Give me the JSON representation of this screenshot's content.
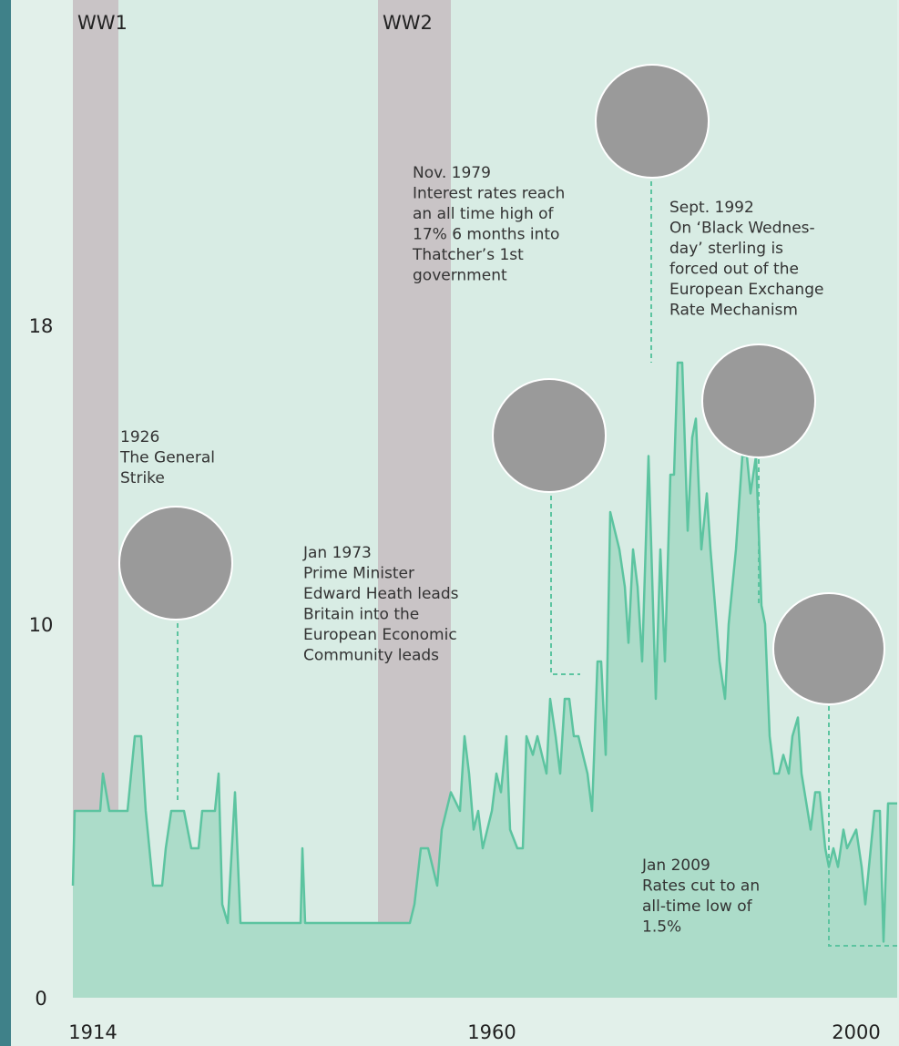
{
  "chart_data": {
    "type": "area",
    "x": [
      1914,
      1914.2,
      1917,
      1917.3,
      1918,
      1920,
      1920.8,
      1921.5,
      1922,
      1922.8,
      1923.8,
      1924.2,
      1924.8,
      1925.6,
      1926.2,
      1927,
      1927.8,
      1928.2,
      1929.6,
      1930,
      1930.4,
      1931,
      1931.8,
      1932.4,
      1939,
      1939.2,
      1939.5,
      1951,
      1951.5,
      1952.2,
      1953,
      1953.5,
      1954,
      1954.5,
      1955.5,
      1956.5,
      1957,
      1957.5,
      1958,
      1958.5,
      1959,
      1960,
      1960.5,
      1961,
      1961.6,
      1962,
      1962.8,
      1963.4,
      1963.8,
      1964.5,
      1965,
      1966,
      1966.4,
      1967,
      1967.5,
      1968,
      1968.5,
      1969,
      1969.5,
      1970.5,
      1971,
      1971.6,
      1972,
      1972.5,
      1973,
      1974,
      1974.6,
      1975,
      1975.5,
      1976,
      1976.5,
      1977.2,
      1978,
      1978.5,
      1979,
      1979.6,
      1980,
      1980.4,
      1980.9,
      1981.5,
      1982,
      1982.4,
      1983,
      1983.6,
      1984,
      1985,
      1985.6,
      1986,
      1986.8,
      1987.5,
      1988,
      1988.4,
      1988.7,
      1989,
      1989.6,
      1990,
      1990.5,
      1991,
      1991.5,
      1992,
      1992.6,
      1993,
      1993.6,
      1994,
      1995,
      1995.5,
      1996,
      1996.6,
      1997,
      1997.5,
      1998,
      1998.6,
      1999,
      2000,
      2000.6,
      2001,
      2002,
      2002.6,
      2003,
      2003.5,
      2004.5
    ],
    "values": [
      3,
      5,
      5,
      6,
      5,
      5,
      7,
      7,
      5,
      3,
      3,
      4,
      5,
      5,
      5,
      4,
      4,
      5,
      5,
      6,
      2.5,
      2,
      5.5,
      2,
      2,
      4,
      2,
      2,
      2.5,
      4,
      4,
      3.5,
      3,
      4.5,
      5.5,
      5,
      7,
      6,
      4.5,
      5,
      4,
      5,
      6,
      5.5,
      7,
      4.5,
      4,
      4,
      7,
      6.5,
      7,
      6,
      8,
      7,
      6,
      8,
      8,
      7,
      7,
      6,
      5,
      9,
      9,
      6.5,
      13,
      12,
      11,
      9.5,
      12,
      11,
      9,
      14.5,
      8,
      12,
      9,
      14,
      14,
      17,
      17,
      12.5,
      15,
      15.5,
      12,
      13.5,
      12,
      9,
      8,
      10,
      12,
      14.5,
      14.5,
      13.5,
      14,
      14.5,
      10.5,
      10,
      7,
      6,
      6,
      6.5,
      6,
      7,
      7.5,
      6,
      4.5,
      5.5,
      5.5,
      4,
      3.5,
      4,
      3.5,
      4.5,
      4,
      4.5,
      3.5,
      2.5,
      5,
      5,
      1.5,
      5.2,
      5.2
    ],
    "xlim": [
      1914,
      2004.5
    ],
    "xticks": [
      1914,
      1960,
      2000
    ],
    "ylim": [
      0,
      20
    ],
    "yticks": [
      0,
      10,
      18
    ],
    "color": "#5cc4a0",
    "fill": "#acdcc9",
    "bands": [
      {
        "label": "WW1",
        "start": 1914,
        "end": 1919
      },
      {
        "label": "WW2",
        "start": 1947.5,
        "end": 1955.5
      }
    ],
    "annotations": [
      {
        "lines": [
          "1926",
          "The General",
          "Strike"
        ]
      },
      {
        "lines": [
          "Jan 1973",
          "Prime Minister",
          "Edward Heath leads",
          "Britain into the",
          "European Economic",
          "Community leads"
        ]
      },
      {
        "lines": [
          "Nov. 1979",
          "Interest rates reach",
          "an all time high of",
          "17% 6 months into",
          "Thatcher’s 1st",
          "government"
        ]
      },
      {
        "lines": [
          "Sept. 1992",
          "On ‘Black Wednes-",
          "day’ sterling is",
          "forced out of the",
          "European Exchange",
          "Rate Mechanism"
        ]
      },
      {
        "lines": [
          "Jan 2009",
          "Rates cut to an",
          "all-time low of",
          "1.5%"
        ]
      }
    ]
  }
}
